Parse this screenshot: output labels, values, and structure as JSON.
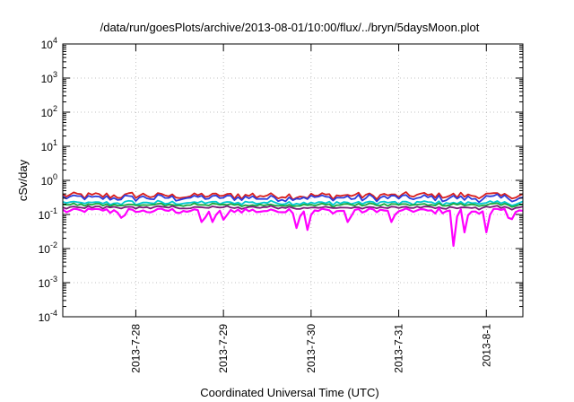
{
  "chart_data": {
    "type": "line",
    "title": "/data/run/goesPlots/archive/2013-08-01/10:00/flux/../bryn/5daysMoon.plot",
    "xlabel": "Coordinated Universal Time (UTC)",
    "ylabel": "cSv/day",
    "y_scale": "log",
    "ylim": [
      0.0001,
      10000
    ],
    "y_ticks": [
      {
        "value": 0.0001,
        "base": "10",
        "exp": "-4"
      },
      {
        "value": 0.001,
        "base": "10",
        "exp": "-3"
      },
      {
        "value": 0.01,
        "base": "10",
        "exp": "-2"
      },
      {
        "value": 0.1,
        "base": "10",
        "exp": "-1"
      },
      {
        "value": 1,
        "base": "10",
        "exp": "0"
      },
      {
        "value": 10,
        "base": "10",
        "exp": "1"
      },
      {
        "value": 100,
        "base": "10",
        "exp": "2"
      },
      {
        "value": 1000,
        "base": "10",
        "exp": "3"
      },
      {
        "value": 10000,
        "base": "10",
        "exp": "4"
      }
    ],
    "xlim": [
      "2013-07-27 04:00",
      "2013-08-01 10:00"
    ],
    "x_ticks": [
      {
        "value": "2013-07-28 00:00",
        "label": "2013-7-28"
      },
      {
        "value": "2013-07-29 00:00",
        "label": "2013-7-29"
      },
      {
        "value": "2013-07-30 00:00",
        "label": "2013-7-30"
      },
      {
        "value": "2013-07-31 00:00",
        "label": "2013-7-31"
      },
      {
        "value": "2013-08-01 00:00",
        "label": "2013-8-1"
      }
    ],
    "grid": true,
    "sample_interval_hours": 1,
    "series": [
      {
        "color": "#d81e1e",
        "base": 0.36,
        "noise": 0.22,
        "values": []
      },
      {
        "color": "#2a3cdc",
        "base": 0.31,
        "noise": 0.22,
        "values": []
      },
      {
        "color": "#00c8d2",
        "base": 0.22,
        "noise": 0.12,
        "values": []
      },
      {
        "color": "#1aa83c",
        "base": 0.19,
        "noise": 0.08,
        "values": []
      },
      {
        "color": "#7a1a78",
        "base": 0.16,
        "noise": 0.08,
        "values": []
      },
      {
        "color": "#ff00ff",
        "base": 0.13,
        "noise": 0.15,
        "values": [],
        "dips": [
          {
            "x": "2013-07-27 20:00",
            "value": 0.08
          },
          {
            "x": "2013-07-28 18:00",
            "value": 0.06
          },
          {
            "x": "2013-07-28 21:00",
            "value": 0.06
          },
          {
            "x": "2013-07-29 00:00",
            "value": 0.07
          },
          {
            "x": "2013-07-29 20:00",
            "value": 0.04
          },
          {
            "x": "2013-07-29 23:00",
            "value": 0.035
          },
          {
            "x": "2013-07-30 10:00",
            "value": 0.06
          },
          {
            "x": "2013-07-30 22:00",
            "value": 0.06
          },
          {
            "x": "2013-07-31 15:00",
            "value": 0.012
          },
          {
            "x": "2013-07-31 18:00",
            "value": 0.03
          },
          {
            "x": "2013-08-01 00:00",
            "value": 0.03
          },
          {
            "x": "2013-08-01 06:00",
            "value": 0.08
          }
        ]
      }
    ]
  }
}
